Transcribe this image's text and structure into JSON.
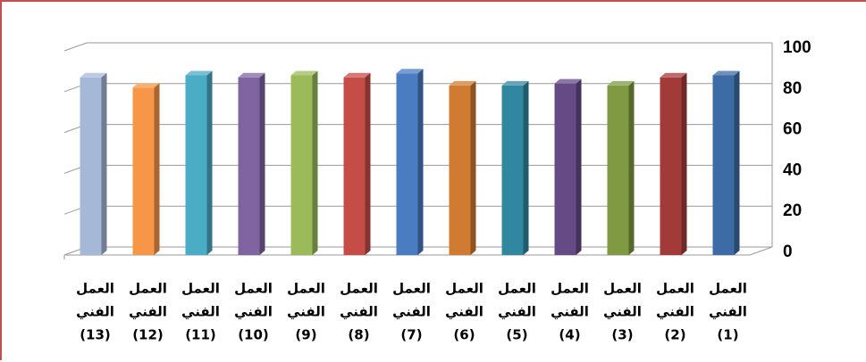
{
  "chart_data": {
    "type": "bar",
    "style": "3d-column",
    "axis_side": "right",
    "grid": true,
    "ylim": [
      0,
      100
    ],
    "yticks": [
      0,
      20,
      40,
      60,
      80,
      100
    ],
    "categories": [
      {
        "line1": "العمل",
        "line2": "الفني",
        "line3": "(1)"
      },
      {
        "line1": "العمل",
        "line2": "الفني",
        "line3": "(2)"
      },
      {
        "line1": "العمل",
        "line2": "الفني",
        "line3": "(3)"
      },
      {
        "line1": "العمل",
        "line2": "الفني",
        "line3": "(4)"
      },
      {
        "line1": "العمل",
        "line2": "الفني",
        "line3": "(5)"
      },
      {
        "line1": "العمل",
        "line2": "الفني",
        "line3": "(6)"
      },
      {
        "line1": "العمل",
        "line2": "الفني",
        "line3": "(7)"
      },
      {
        "line1": "العمل",
        "line2": "الفني",
        "line3": "(8)"
      },
      {
        "line1": "العمل",
        "line2": "الفني",
        "line3": "(9)"
      },
      {
        "line1": "العمل",
        "line2": "الفني",
        "line3": "(10)"
      },
      {
        "line1": "العمل",
        "line2": "الفني",
        "line3": "(11)"
      },
      {
        "line1": "العمل",
        "line2": "الفني",
        "line3": "(12)"
      },
      {
        "line1": "العمل",
        "line2": "الفني",
        "line3": "(13)"
      }
    ],
    "values": [
      88,
      87,
      83,
      84,
      83,
      83,
      89,
      87,
      88,
      87,
      88,
      82,
      87
    ],
    "colors": [
      "#3c6ba5",
      "#a23b38",
      "#7f9a42",
      "#664a86",
      "#31879f",
      "#d17a32",
      "#4a7cc2",
      "#c54c47",
      "#9bbb59",
      "#8064a2",
      "#4bacc6",
      "#f79646",
      "#a5b8d8"
    ]
  }
}
